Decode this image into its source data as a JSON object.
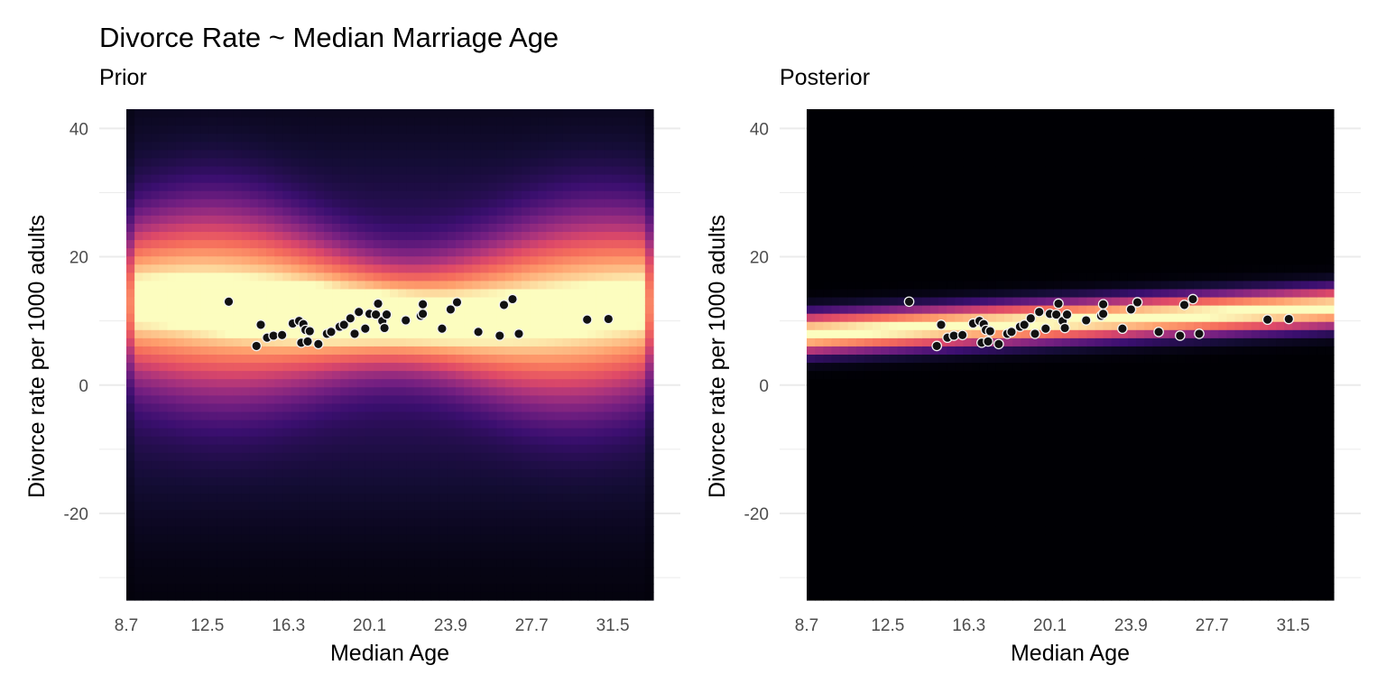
{
  "title": "Divorce Rate ~ Median Marriage Age",
  "colors": {
    "grid": "#ebebeb",
    "tick_text": "#4d4d4d",
    "point_fill": "#111111",
    "point_stroke": "#f2f2f2",
    "colormap": "magma"
  },
  "chart_data": [
    {
      "type": "heatmap",
      "subtitle": "Prior",
      "xlabel": "Median Age",
      "ylabel": "Divorce rate per 1000 adults",
      "x_ticks": [
        "8.7",
        "12.5",
        "16.3",
        "20.1",
        "23.9",
        "27.7",
        "31.5"
      ],
      "y_ticks": [
        "40",
        "20",
        "0",
        "-20"
      ],
      "xlim": [
        8.7,
        33.4
      ],
      "ylim": [
        -33.5,
        43
      ],
      "grid": true,
      "density": "broad prior predictive band, centered near 12 with wide spread",
      "points": [
        [
          13.5,
          13.0
        ],
        [
          14.8,
          6.1
        ],
        [
          15.0,
          9.4
        ],
        [
          15.3,
          7.4
        ],
        [
          15.6,
          7.7
        ],
        [
          16.0,
          7.8
        ],
        [
          16.5,
          9.6
        ],
        [
          16.8,
          10.0
        ],
        [
          16.9,
          6.6
        ],
        [
          17.0,
          9.5
        ],
        [
          17.1,
          8.6
        ],
        [
          17.2,
          6.8
        ],
        [
          17.3,
          8.4
        ],
        [
          17.7,
          6.4
        ],
        [
          18.1,
          8.0
        ],
        [
          18.3,
          8.3
        ],
        [
          18.7,
          9.1
        ],
        [
          18.9,
          9.4
        ],
        [
          19.2,
          10.4
        ],
        [
          19.4,
          8.0
        ],
        [
          19.6,
          11.4
        ],
        [
          19.9,
          8.8
        ],
        [
          20.1,
          11.1
        ],
        [
          20.4,
          11.0
        ],
        [
          20.5,
          12.7
        ],
        [
          20.7,
          10.0
        ],
        [
          20.8,
          8.9
        ],
        [
          20.9,
          11.0
        ],
        [
          21.8,
          10.1
        ],
        [
          22.5,
          10.8
        ],
        [
          22.6,
          11.1
        ],
        [
          22.6,
          12.6
        ],
        [
          23.5,
          8.8
        ],
        [
          23.9,
          11.8
        ],
        [
          24.2,
          12.9
        ],
        [
          25.2,
          8.3
        ],
        [
          26.2,
          7.7
        ],
        [
          26.4,
          12.5
        ],
        [
          26.8,
          13.4
        ],
        [
          27.1,
          8.0
        ],
        [
          30.3,
          10.2
        ],
        [
          31.3,
          10.3
        ]
      ]
    },
    {
      "type": "heatmap",
      "subtitle": "Posterior",
      "xlabel": "Median Age",
      "ylabel": "Divorce rate per 1000 adults",
      "x_ticks": [
        "8.7",
        "12.5",
        "16.3",
        "20.1",
        "23.9",
        "27.7",
        "31.5"
      ],
      "y_ticks": [
        "40",
        "20",
        "0",
        "-20"
      ],
      "xlim": [
        8.7,
        33.4
      ],
      "ylim": [
        -33.5,
        43
      ],
      "grid": true,
      "density": "narrow posterior band rising from about 8 at x=8.7 to about 12 at x=33.4",
      "points": [
        [
          13.5,
          13.0
        ],
        [
          14.8,
          6.1
        ],
        [
          15.0,
          9.4
        ],
        [
          15.3,
          7.4
        ],
        [
          15.6,
          7.7
        ],
        [
          16.0,
          7.8
        ],
        [
          16.5,
          9.6
        ],
        [
          16.8,
          10.0
        ],
        [
          16.9,
          6.6
        ],
        [
          17.0,
          9.5
        ],
        [
          17.1,
          8.6
        ],
        [
          17.2,
          6.8
        ],
        [
          17.3,
          8.4
        ],
        [
          17.7,
          6.4
        ],
        [
          18.1,
          8.0
        ],
        [
          18.3,
          8.3
        ],
        [
          18.7,
          9.1
        ],
        [
          18.9,
          9.4
        ],
        [
          19.2,
          10.4
        ],
        [
          19.4,
          8.0
        ],
        [
          19.6,
          11.4
        ],
        [
          19.9,
          8.8
        ],
        [
          20.1,
          11.1
        ],
        [
          20.4,
          11.0
        ],
        [
          20.5,
          12.7
        ],
        [
          20.7,
          10.0
        ],
        [
          20.8,
          8.9
        ],
        [
          20.9,
          11.0
        ],
        [
          21.8,
          10.1
        ],
        [
          22.5,
          10.8
        ],
        [
          22.6,
          11.1
        ],
        [
          22.6,
          12.6
        ],
        [
          23.5,
          8.8
        ],
        [
          23.9,
          11.8
        ],
        [
          24.2,
          12.9
        ],
        [
          25.2,
          8.3
        ],
        [
          26.2,
          7.7
        ],
        [
          26.4,
          12.5
        ],
        [
          26.8,
          13.4
        ],
        [
          27.1,
          8.0
        ],
        [
          30.3,
          10.2
        ],
        [
          31.3,
          10.3
        ]
      ]
    }
  ]
}
